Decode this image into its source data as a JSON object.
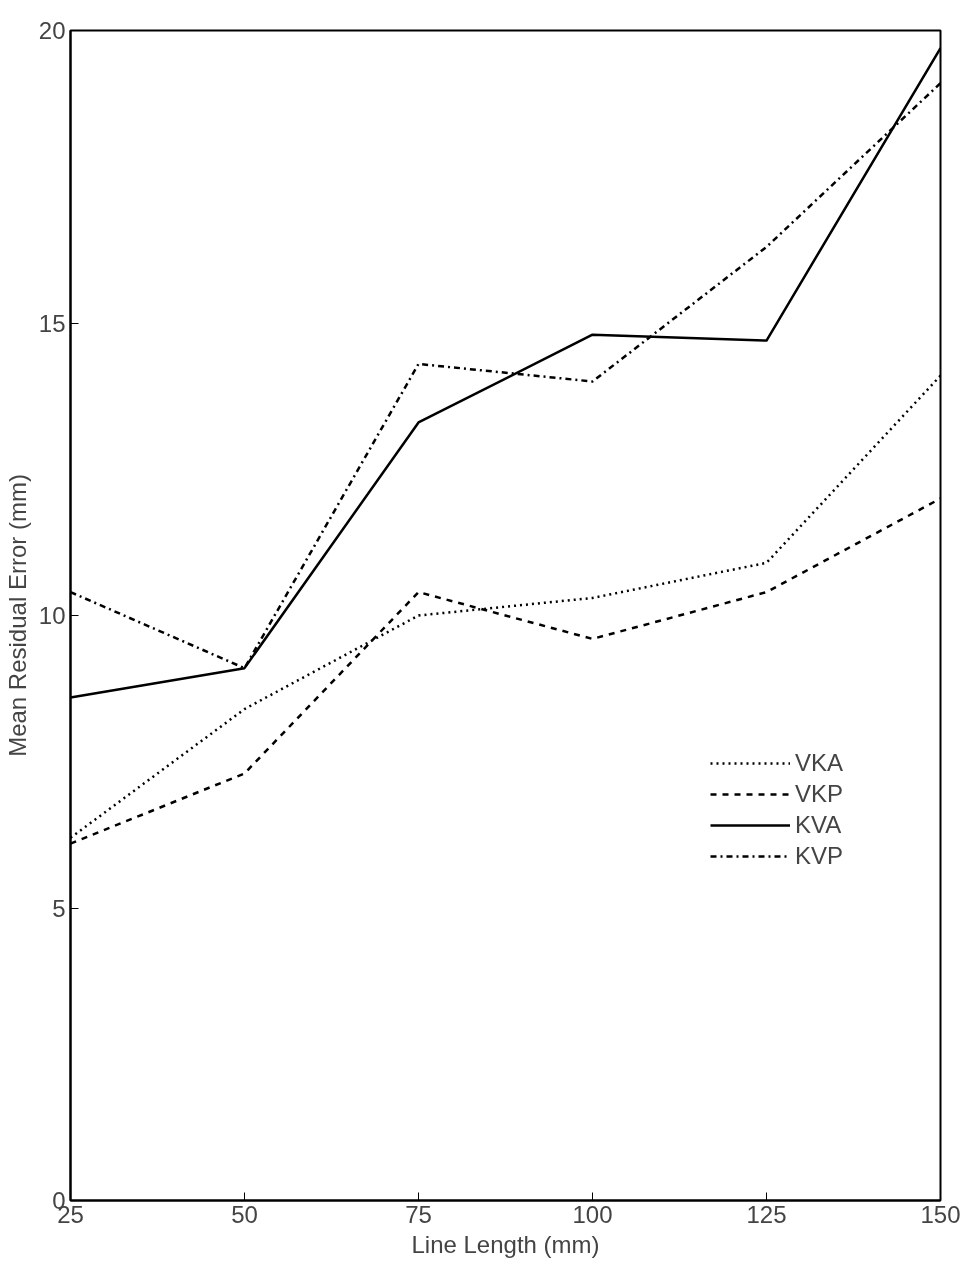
{
  "chart_data": {
    "type": "line",
    "xlabel": "Line Length (mm)",
    "ylabel": "Mean Residual Error (mm)",
    "x": [
      25,
      50,
      75,
      100,
      125,
      150
    ],
    "xlim": [
      25,
      150
    ],
    "xticks": [
      25,
      50,
      75,
      100,
      125,
      150
    ],
    "ylim": [
      0,
      20
    ],
    "yticks": [
      0,
      5,
      10,
      15,
      20
    ],
    "grid": false,
    "legend": "right",
    "marker": "none",
    "series": [
      {
        "name": "VKA",
        "color": "#000000",
        "line_style": "dotted",
        "values": [
          6.2,
          8.4,
          10.0,
          10.3,
          10.9,
          14.1
        ]
      },
      {
        "name": "VKP",
        "color": "#000000",
        "line_style": "dashed",
        "values": [
          6.1,
          7.3,
          10.4,
          9.6,
          10.4,
          12.0
        ]
      },
      {
        "name": "KVA",
        "color": "#000000",
        "line_style": "solid",
        "values": [
          8.6,
          9.1,
          13.3,
          14.8,
          14.7,
          19.7
        ]
      },
      {
        "name": "KVP",
        "color": "#000000",
        "line_style": "dashdot",
        "values": [
          10.4,
          9.1,
          14.3,
          14.0,
          16.3,
          19.1
        ]
      }
    ]
  }
}
